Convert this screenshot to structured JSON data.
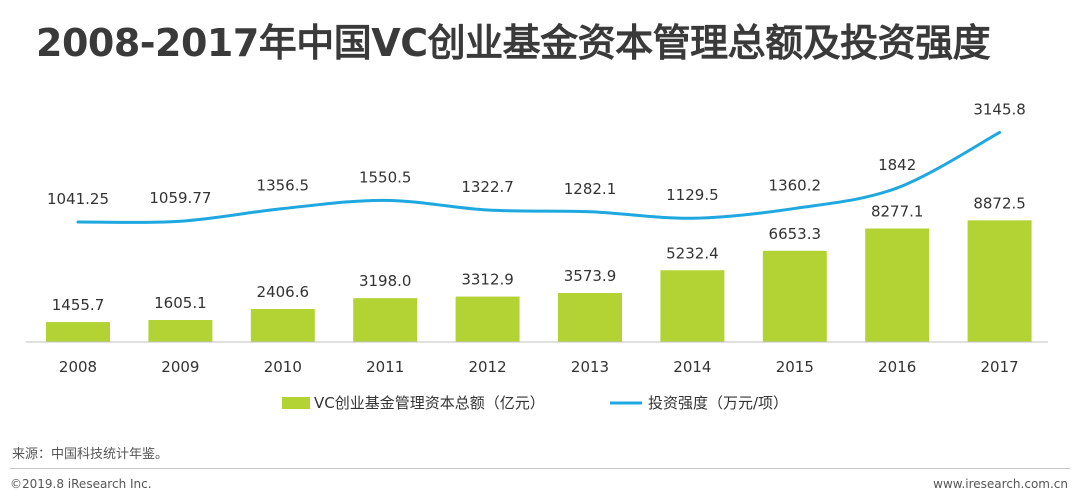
{
  "title": "2008-2017年中国VC创业基金资本管理总额及投资强度",
  "source": "来源：中国科技统计年鉴。",
  "copyright": "©2019.8 iResearch Inc.",
  "website": "www.iresearch.com.cn",
  "colors": {
    "bar": "#b3d334",
    "line": "#1fa8e0",
    "axis": "#c0c0c0",
    "text": "#333333"
  },
  "chart_data": {
    "type": "bar+line",
    "categories": [
      "2008",
      "2009",
      "2010",
      "2011",
      "2012",
      "2013",
      "2014",
      "2015",
      "2016",
      "2017"
    ],
    "series": [
      {
        "name": "VC创业基金管理资本总额（亿元）",
        "type": "bar",
        "values": [
          1455.7,
          1605.1,
          2406.6,
          3198.0,
          3312.9,
          3573.9,
          5232.4,
          6653.3,
          8277.1,
          8872.5
        ],
        "labels": [
          "1455.7",
          "1605.1",
          "2406.6",
          "3198.0",
          "3312.9",
          "3573.9",
          "5232.4",
          "6653.3",
          "8277.1",
          "8872.5"
        ]
      },
      {
        "name": "投资强度（万元/项）",
        "type": "line",
        "values": [
          1041.25,
          1059.77,
          1356.5,
          1550.5,
          1322.7,
          1282.1,
          1129.5,
          1360.2,
          1842,
          3145.8
        ],
        "labels": [
          "1041.25",
          "1059.77",
          "1356.5",
          "1550.5",
          "1322.7",
          "1282.1",
          "1129.5",
          "1360.2",
          "1842",
          "3145.8"
        ]
      }
    ],
    "legend_position": "bottom",
    "grid": false
  }
}
